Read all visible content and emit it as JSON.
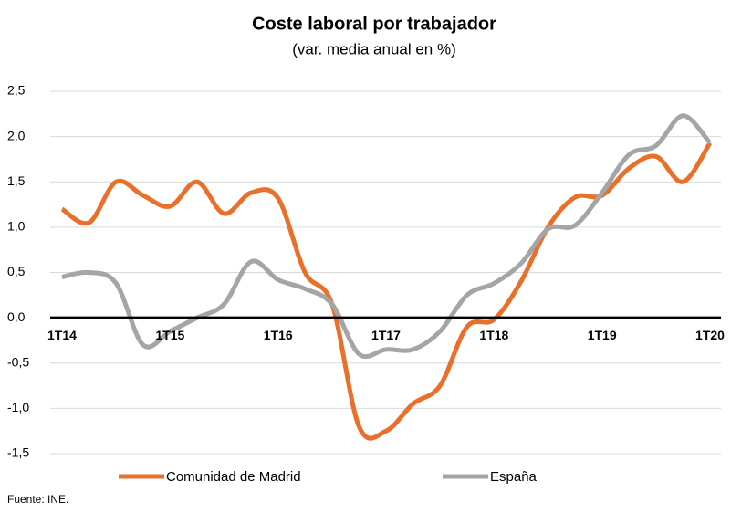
{
  "chart_data": {
    "type": "line",
    "title": "Coste laboral por trabajador",
    "subtitle": "(var. media anual en %)",
    "source": "Fuente: INE.",
    "categories": [
      "1T14",
      null,
      null,
      null,
      "1T15",
      null,
      null,
      null,
      "1T16",
      null,
      null,
      null,
      "1T17",
      null,
      null,
      null,
      "1T18",
      null,
      null,
      null,
      "1T19",
      null,
      null,
      null,
      "1T20"
    ],
    "series": [
      {
        "name": "Comunidad de Madrid",
        "color": "#e8702a",
        "values": [
          1.2,
          1.05,
          1.5,
          1.35,
          1.23,
          1.5,
          1.15,
          1.38,
          1.32,
          0.5,
          0.15,
          -1.2,
          -1.25,
          -0.95,
          -0.75,
          -0.1,
          -0.02,
          0.4,
          1.0,
          1.33,
          1.35,
          1.65,
          1.78,
          1.5,
          1.93
        ]
      },
      {
        "name": "España",
        "color": "#a5a5a5",
        "values": [
          0.45,
          0.5,
          0.38,
          -0.3,
          -0.15,
          0.0,
          0.15,
          0.62,
          0.42,
          0.32,
          0.15,
          -0.4,
          -0.35,
          -0.35,
          -0.15,
          0.25,
          0.38,
          0.6,
          0.98,
          1.02,
          1.38,
          1.8,
          1.9,
          2.23,
          1.93
        ]
      }
    ],
    "ylim": [
      -1.5,
      2.5
    ],
    "yticks": [
      {
        "value": 2.5,
        "label": "2,5"
      },
      {
        "value": 2.0,
        "label": "2,0"
      },
      {
        "value": 1.5,
        "label": "1,5"
      },
      {
        "value": 1.0,
        "label": "1,0"
      },
      {
        "value": 0.5,
        "label": "0,5"
      },
      {
        "value": 0,
        "label": "0,0"
      },
      {
        "value": -0.5,
        "label": "-0,5"
      },
      {
        "value": -1.0,
        "label": "-1,0"
      },
      {
        "value": -1.5,
        "label": "-1,5"
      }
    ],
    "grid": true,
    "legend": "bottom"
  }
}
